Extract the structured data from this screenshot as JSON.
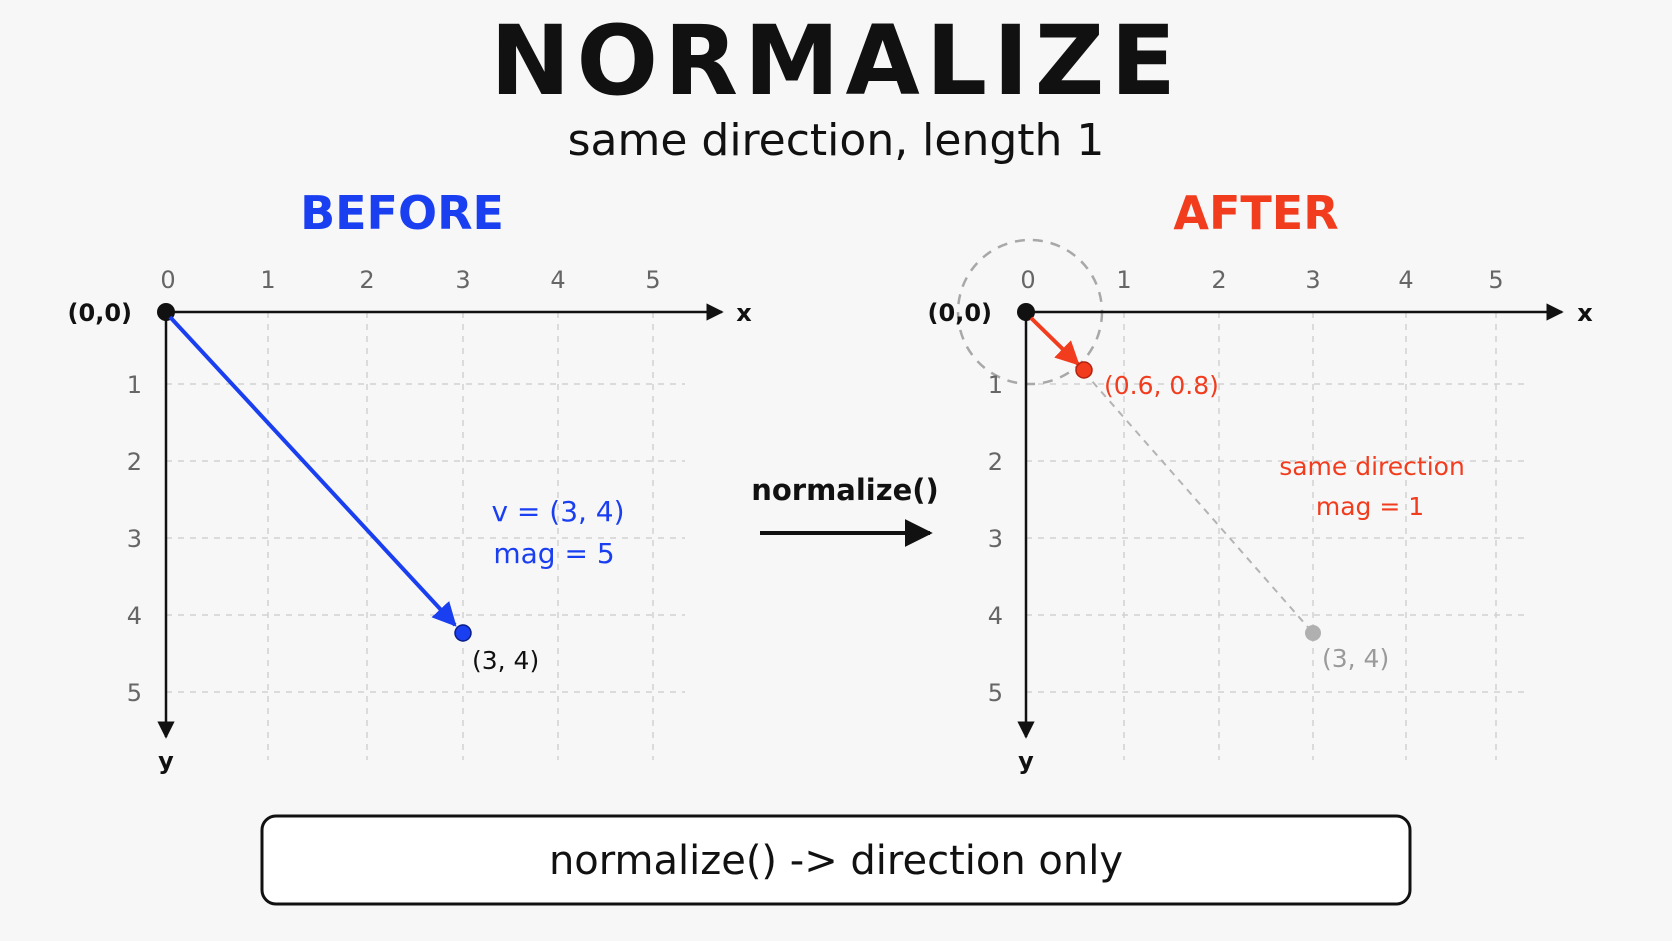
{
  "title": "NORMALIZE",
  "subtitle": "same direction, length 1",
  "colors": {
    "before": "#1a3ff0",
    "after": "#f23c1e",
    "ghost": "#aaaaaa",
    "text": "#111111"
  },
  "panels": {
    "before": {
      "title": "BEFORE",
      "x_ticks": [
        "0",
        "1",
        "2",
        "3",
        "4",
        "5"
      ],
      "y_ticks": [
        "1",
        "2",
        "3",
        "4",
        "5"
      ],
      "x_axis_label": "x",
      "y_axis_label": "y",
      "origin_label": "(0,0)",
      "vector": {
        "x": 3,
        "y": 4
      },
      "point_label": "(3, 4)",
      "note_line1": "v = (3, 4)",
      "note_line2": "mag = 5"
    },
    "after": {
      "title": "AFTER",
      "x_ticks": [
        "0",
        "1",
        "2",
        "3",
        "4",
        "5"
      ],
      "y_ticks": [
        "1",
        "2",
        "3",
        "4",
        "5"
      ],
      "x_axis_label": "x",
      "y_axis_label": "y",
      "origin_label": "(0,0)",
      "vector": {
        "x": 0.6,
        "y": 0.8
      },
      "point_label": "(0.6, 0.8)",
      "ghost_vector": {
        "x": 3,
        "y": 4
      },
      "ghost_label": "(3, 4)",
      "unit_circle_radius": 1,
      "note_line1": "same direction",
      "note_line2": "mag = 1"
    }
  },
  "operation": {
    "label": "normalize()"
  },
  "footer": {
    "text": "normalize() -> direction only"
  }
}
